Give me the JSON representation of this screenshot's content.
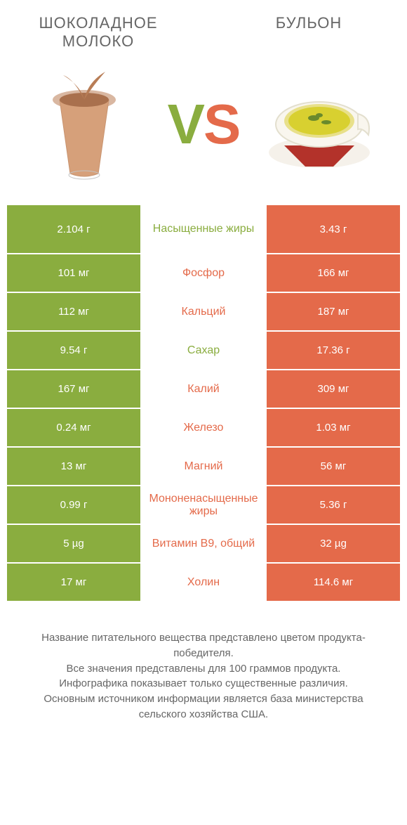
{
  "header": {
    "left": "ШОКОЛАДНОЕ МОЛОКО",
    "right": "БУЛЬОН"
  },
  "vs": {
    "v": "V",
    "s": "S"
  },
  "colors": {
    "green": "#8aad3f",
    "orange": "#e46a4a",
    "text": "#666666"
  },
  "rows": [
    {
      "left": "2.104 г",
      "label": "Насыщенные жиры",
      "right": "3.43 г",
      "winner": "left"
    },
    {
      "left": "101 мг",
      "label": "Фосфор",
      "right": "166 мг",
      "winner": "right"
    },
    {
      "left": "112 мг",
      "label": "Кальций",
      "right": "187 мг",
      "winner": "right"
    },
    {
      "left": "9.54 г",
      "label": "Сахар",
      "right": "17.36 г",
      "winner": "left"
    },
    {
      "left": "167 мг",
      "label": "Калий",
      "right": "309 мг",
      "winner": "right"
    },
    {
      "left": "0.24 мг",
      "label": "Железо",
      "right": "1.03 мг",
      "winner": "right"
    },
    {
      "left": "13 мг",
      "label": "Магний",
      "right": "56 мг",
      "winner": "right"
    },
    {
      "left": "0.99 г",
      "label": "Мононенасыщенные жиры",
      "right": "5.36 г",
      "winner": "right"
    },
    {
      "left": "5 µg",
      "label": "Витамин B9, общий",
      "right": "32 µg",
      "winner": "right"
    },
    {
      "left": "17 мг",
      "label": "Холин",
      "right": "114.6 мг",
      "winner": "right"
    }
  ],
  "footer": {
    "l1": "Название питательного вещества представлено цветом продукта-победителя.",
    "l2": "Все значения представлены для 100 граммов продукта.",
    "l3": "Инфографика показывает только существенные различия.",
    "l4": "Основным источником информации является база министерства сельского хозяйства США."
  }
}
